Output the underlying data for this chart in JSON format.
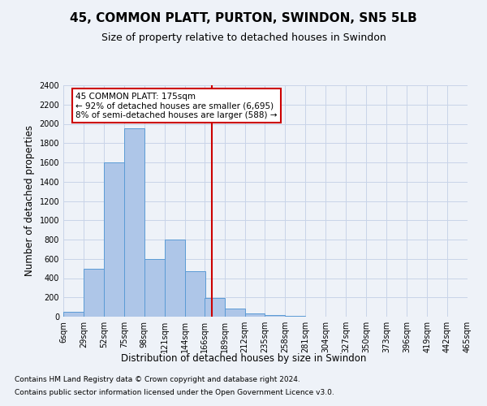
{
  "title": "45, COMMON PLATT, PURTON, SWINDON, SN5 5LB",
  "subtitle": "Size of property relative to detached houses in Swindon",
  "xlabel": "Distribution of detached houses by size in Swindon",
  "ylabel": "Number of detached properties",
  "footer1": "Contains HM Land Registry data © Crown copyright and database right 2024.",
  "footer2": "Contains public sector information licensed under the Open Government Licence v3.0.",
  "annotation_title": "45 COMMON PLATT: 175sqm",
  "annotation_line1": "← 92% of detached houses are smaller (6,695)",
  "annotation_line2": "8% of semi-detached houses are larger (588) →",
  "property_size": 175,
  "bar_categories": [
    "6sqm",
    "29sqm",
    "52sqm",
    "75sqm",
    "98sqm",
    "121sqm",
    "144sqm",
    "166sqm",
    "189sqm",
    "212sqm",
    "235sqm",
    "258sqm",
    "281sqm",
    "304sqm",
    "327sqm",
    "350sqm",
    "373sqm",
    "396sqm",
    "419sqm",
    "442sqm",
    "465sqm"
  ],
  "bar_edges": [
    6,
    29,
    52,
    75,
    98,
    121,
    144,
    166,
    189,
    212,
    235,
    258,
    281,
    304,
    327,
    350,
    373,
    396,
    419,
    442,
    465
  ],
  "bar_heights": [
    50,
    500,
    1600,
    1950,
    600,
    800,
    475,
    195,
    85,
    30,
    20,
    5,
    0,
    0,
    0,
    0,
    0,
    0,
    0,
    0
  ],
  "bar_color": "#aec6e8",
  "bar_edge_color": "#5b9bd5",
  "vline_x": 175,
  "vline_color": "#cc0000",
  "annotation_box_color": "#cc0000",
  "ylim": [
    0,
    2400
  ],
  "yticks": [
    0,
    200,
    400,
    600,
    800,
    1000,
    1200,
    1400,
    1600,
    1800,
    2000,
    2200,
    2400
  ],
  "grid_color": "#c8d4e8",
  "background_color": "#eef2f8",
  "title_fontsize": 11,
  "subtitle_fontsize": 9,
  "label_fontsize": 8.5,
  "tick_fontsize": 7,
  "footer_fontsize": 6.5,
  "annotation_fontsize": 7.5
}
